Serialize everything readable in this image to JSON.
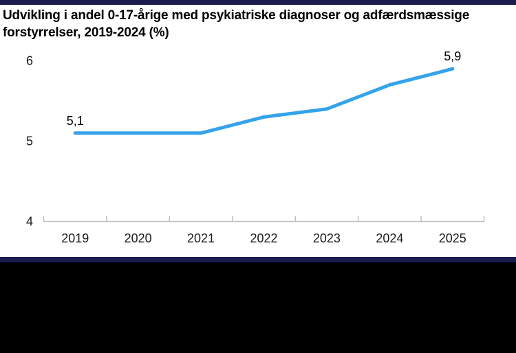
{
  "title": {
    "lines": [
      "Udvikling i andel 0-17-årige med psykiatriske diagnoser og adfærdsmæssige",
      "forstyrrelser, 2019-2024 (%)"
    ]
  },
  "colors": {
    "accent_bar_navy": "#1b1b4e",
    "footer_black": "#000000",
    "line_blue": "#35a3ec",
    "axis_gray": "#bfbfbf",
    "text_black": "#1a1a1a"
  },
  "chart_data": {
    "type": "line",
    "title": "Udvikling i andel 0-17-årige med psykiatriske diagnoser og adfærdsmæssige forstyrrelser, 2019-2024 (%)",
    "categories": [
      "2019",
      "2020",
      "2021",
      "2022",
      "2023",
      "2024",
      "2025"
    ],
    "series": [
      {
        "values": [
          5.1,
          5.1,
          5.1,
          5.3,
          5.4,
          5.7,
          5.9
        ],
        "point_labels": [
          "5,1",
          "",
          "",
          "",
          "",
          "",
          "5,9"
        ]
      }
    ],
    "xlabel": "",
    "ylabel": "",
    "ylim": [
      4,
      6
    ],
    "y_ticks": [
      4,
      5,
      6
    ],
    "grid": false,
    "legend": false,
    "line_color": "#35a3ec",
    "axis_color": "#bfbfbf",
    "decimal_separator": ","
  }
}
